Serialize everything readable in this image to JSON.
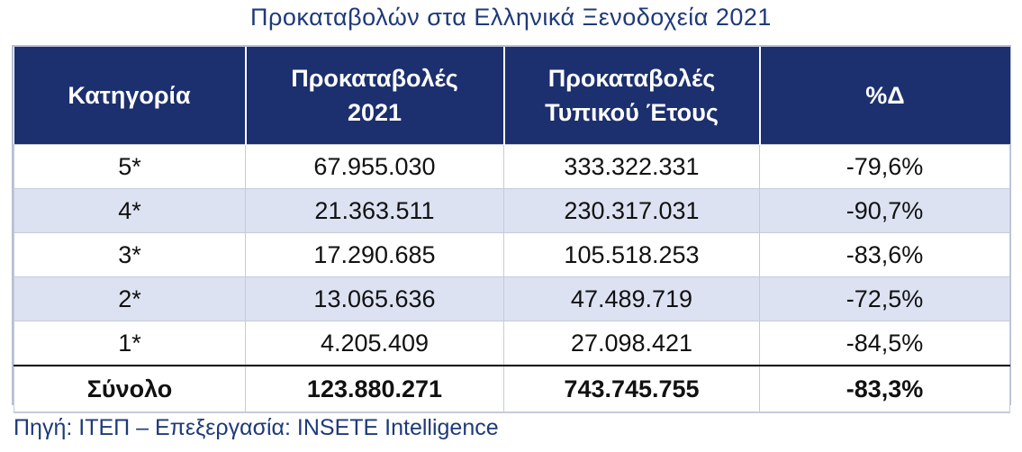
{
  "title": "Προκαταβολών στα Ελληνικά Ξενοδοχεία 2021",
  "source": "Πηγή: ΙΤΕΠ – Επεξεργασία: INSETE Intelligence",
  "colors": {
    "header_bg": "#1c2f6e",
    "header_text": "#ffffff",
    "stripe": "#dde2f2",
    "title_text": "#1f3a7a"
  },
  "chart_data": {
    "type": "table",
    "title": "Προκαταβολών στα Ελληνικά Ξενοδοχεία 2021",
    "columns": [
      {
        "lines": [
          "Κατηγορία"
        ]
      },
      {
        "lines": [
          "Προκαταβολές",
          "2021"
        ]
      },
      {
        "lines": [
          "Προκαταβολές",
          "Τυπικού Έτους"
        ]
      },
      {
        "lines": [
          "%Δ"
        ]
      }
    ],
    "rows": [
      [
        "5*",
        "67.955.030",
        "333.322.331",
        "-79,6%"
      ],
      [
        "4*",
        "21.363.511",
        "230.317.031",
        "-90,7%"
      ],
      [
        "3*",
        "17.290.685",
        "105.518.253",
        "-83,6%"
      ],
      [
        "2*",
        "13.065.636",
        "47.489.719",
        "-72,5%"
      ],
      [
        "1*",
        "4.205.409",
        "27.098.421",
        "-84,5%"
      ]
    ],
    "total": [
      "Σύνολο",
      "123.880.271",
      "743.745.755",
      "-83,3%"
    ]
  }
}
